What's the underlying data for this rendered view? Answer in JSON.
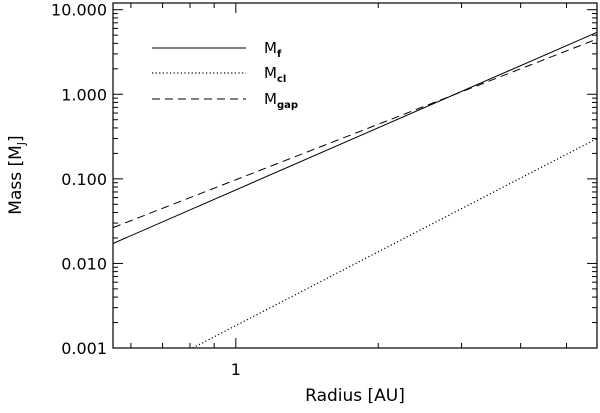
{
  "chart_data": {
    "type": "line",
    "xlabel": {
      "text": "Radius [AU]"
    },
    "ylabel": {
      "text": "Mass [M",
      "subscript": "J",
      "suffix": "]"
    },
    "xscale": "log",
    "yscale": "log",
    "xlim": [
      0.55,
      5.8
    ],
    "ylim": [
      0.001,
      12.0
    ],
    "x_tick_labels": [
      {
        "value": 1,
        "label": "1"
      }
    ],
    "y_tick_labels": [
      {
        "value": 0.001,
        "label": "0.001"
      },
      {
        "value": 0.01,
        "label": "0.010"
      },
      {
        "value": 0.1,
        "label": "0.100"
      },
      {
        "value": 1,
        "label": "1.000"
      },
      {
        "value": 10,
        "label": "10.000"
      }
    ],
    "grid": false,
    "legend_position": "top-left",
    "series": [
      {
        "name": "M",
        "subscript": "f",
        "linestyle": "solid",
        "x": [
          0.55,
          5.8
        ],
        "y": [
          0.0172,
          5.4
        ]
      },
      {
        "name": "M",
        "subscript": "cl",
        "linestyle": "dotted",
        "x": [
          0.81,
          5.8
        ],
        "y": [
          0.001,
          0.3
        ]
      },
      {
        "name": "M",
        "subscript": "gap",
        "linestyle": "dashed",
        "x": [
          0.55,
          5.8
        ],
        "y": [
          0.0265,
          4.5
        ]
      }
    ]
  }
}
